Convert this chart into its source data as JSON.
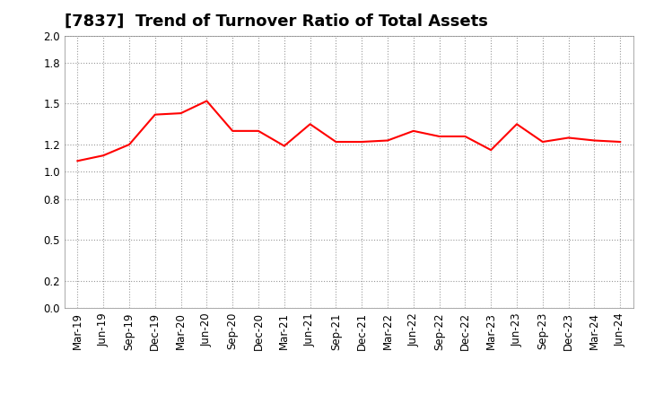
{
  "title": "[7837]  Trend of Turnover Ratio of Total Assets",
  "x_labels": [
    "Mar-19",
    "Jun-19",
    "Sep-19",
    "Dec-19",
    "Mar-20",
    "Jun-20",
    "Sep-20",
    "Dec-20",
    "Mar-21",
    "Jun-21",
    "Sep-21",
    "Dec-21",
    "Mar-22",
    "Jun-22",
    "Sep-22",
    "Dec-22",
    "Mar-23",
    "Jun-23",
    "Sep-23",
    "Dec-23",
    "Mar-24",
    "Jun-24"
  ],
  "values": [
    1.08,
    1.12,
    1.2,
    1.42,
    1.43,
    1.52,
    1.3,
    1.3,
    1.19,
    1.35,
    1.22,
    1.22,
    1.23,
    1.3,
    1.26,
    1.26,
    1.16,
    1.35,
    1.22,
    1.25,
    1.23,
    1.22
  ],
  "line_color": "#ff0000",
  "line_width": 1.5,
  "ylim": [
    0.0,
    2.0
  ],
  "yticks": [
    0.0,
    0.2,
    0.5,
    0.8,
    1.0,
    1.2,
    1.5,
    1.8,
    2.0
  ],
  "background_color": "#ffffff",
  "grid_color": "#999999",
  "title_fontsize": 13,
  "tick_fontsize": 8.5
}
